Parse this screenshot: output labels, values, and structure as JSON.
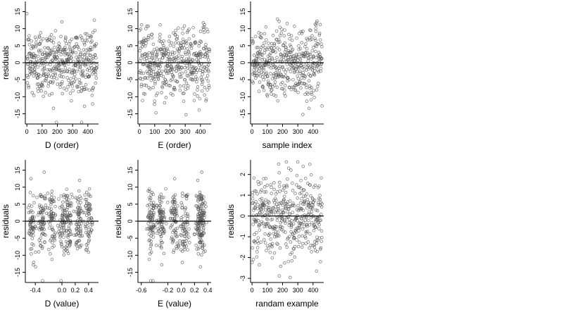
{
  "colors": {
    "points": "#555555",
    "axes": "#000000",
    "background": "#ffffff"
  },
  "chart_data": [
    {
      "type": "scatter",
      "xlabel": "D (order)",
      "ylabel": "residuals",
      "xlim": [
        -10,
        470
      ],
      "ylim": [
        -18,
        18
      ],
      "xticks": [
        0,
        100,
        200,
        300,
        400
      ],
      "xtick_labels": [
        "0",
        "100",
        "200",
        "300",
        "400"
      ],
      "yticks": [
        -15,
        -10,
        -5,
        0,
        5,
        10,
        15
      ],
      "ytick_labels": [
        "-15",
        "-10",
        "-5",
        "0",
        "5",
        "10",
        "15"
      ],
      "hline": 0,
      "points": []
    },
    {
      "type": "scatter",
      "xlabel": "E (order)",
      "ylabel": "residuals",
      "xlim": [
        -10,
        470
      ],
      "ylim": [
        -18,
        18
      ],
      "xticks": [
        0,
        100,
        200,
        300,
        400
      ],
      "xtick_labels": [
        "0",
        "100",
        "200",
        "300",
        "400"
      ],
      "yticks": [
        -15,
        -10,
        -5,
        0,
        5,
        10,
        15
      ],
      "ytick_labels": [
        "-15",
        "-10",
        "-5",
        "0",
        "5",
        "10",
        "15"
      ],
      "hline": 0,
      "points": []
    },
    {
      "type": "scatter",
      "xlabel": "sample index",
      "ylabel": "residuals",
      "xlim": [
        -10,
        470
      ],
      "ylim": [
        -18,
        18
      ],
      "xticks": [
        0,
        100,
        200,
        300,
        400
      ],
      "xtick_labels": [
        "0",
        "100",
        "200",
        "300",
        "400"
      ],
      "yticks": [
        -15,
        -10,
        -5,
        0,
        5,
        10,
        15
      ],
      "ytick_labels": [
        "-15",
        "-10",
        "-5",
        "0",
        "5",
        "10",
        "15"
      ],
      "hline": 0,
      "points": []
    },
    {
      "type": "scatter",
      "xlabel": "D (value)",
      "ylabel": "residuals",
      "xlim": [
        -0.55,
        0.55
      ],
      "ylim": [
        -18,
        18
      ],
      "xticks": [
        -0.4,
        0,
        0.2,
        0.4
      ],
      "xtick_labels": [
        "-0.4",
        "0.0",
        "0.2",
        "0.4"
      ],
      "yticks": [
        -15,
        -10,
        -5,
        0,
        5,
        10,
        15
      ],
      "ytick_labels": [
        "-15",
        "-10",
        "-5",
        "0",
        "5",
        "10",
        "15"
      ],
      "hline": 0,
      "points": []
    },
    {
      "type": "scatter",
      "xlabel": "E (value)",
      "ylabel": "residuals",
      "xlim": [
        -0.65,
        0.45
      ],
      "ylim": [
        -18,
        18
      ],
      "xticks": [
        -0.6,
        -0.2,
        0,
        0.2,
        0.4
      ],
      "xtick_labels": [
        "-0.6",
        "-0.2",
        "0.0",
        "0.2",
        "0.4"
      ],
      "yticks": [
        -15,
        -10,
        -5,
        0,
        5,
        10,
        15
      ],
      "ytick_labels": [
        "-15",
        "-10",
        "-5",
        "0",
        "5",
        "10",
        "15"
      ],
      "hline": 0,
      "points": []
    },
    {
      "type": "scatter",
      "xlabel": "randam example",
      "ylabel": "residuals",
      "xlim": [
        -10,
        470
      ],
      "ylim": [
        -3.2,
        2.7
      ],
      "xticks": [
        0,
        100,
        200,
        300,
        400
      ],
      "xtick_labels": [
        "0",
        "100",
        "200",
        "300",
        "400"
      ],
      "yticks": [
        -3,
        -2,
        -1,
        0,
        1,
        2
      ],
      "ytick_labels": [
        "-3",
        "-2",
        "-1",
        "0",
        "1",
        "2"
      ],
      "hline": 0,
      "points": []
    }
  ]
}
